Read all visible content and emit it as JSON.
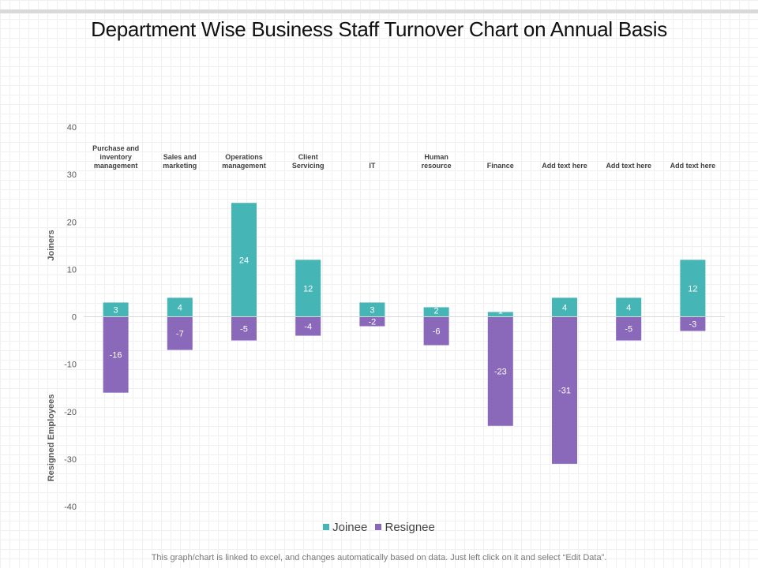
{
  "title": "Department Wise Business Staff Turnover Chart on Annual Basis",
  "footer": "This graph/chart is linked to excel, and changes automatically based on data. Just left click on it and select “Edit Data”.",
  "colors": {
    "joinee": "#45b5b6",
    "resignee": "#8a68ba",
    "axis_text": "#595959",
    "category_text": "#404040"
  },
  "chart_data": {
    "type": "bar",
    "title": "Department Wise Business Staff Turnover Chart on Annual Basis",
    "ylabel_top": "Joiners",
    "ylabel_bottom": "Resigned Employees",
    "ylim": [
      -40,
      40
    ],
    "yticks": [
      "40",
      "30",
      "20",
      "10",
      "0",
      "-10",
      "-20",
      "-30",
      "-40"
    ],
    "categories": [
      [
        "Purchase and",
        "inventory",
        "management"
      ],
      [
        "Sales and",
        "marketing"
      ],
      [
        "Operations",
        "management"
      ],
      [
        "Client",
        "Servicing"
      ],
      [
        "IT"
      ],
      [
        "Human",
        "resource"
      ],
      [
        "Finance"
      ],
      [
        "Add  text here"
      ],
      [
        "Add  text here"
      ],
      [
        "Add  text here"
      ]
    ],
    "series": [
      {
        "name": "Joinee",
        "values": [
          3,
          4,
          24,
          12,
          3,
          2,
          1,
          4,
          4,
          12
        ],
        "labels": [
          "3",
          "4",
          "24",
          "12",
          "3",
          "2",
          "1",
          "4",
          "4",
          "12"
        ]
      },
      {
        "name": "Resignee",
        "values": [
          -16,
          -7,
          -5,
          -4,
          -2,
          -6,
          -23,
          -31,
          -5,
          -3
        ],
        "labels": [
          "-16",
          "-7",
          "-5",
          "-4",
          "-2",
          "-6",
          "-23",
          "-31",
          "-5",
          "-3"
        ]
      }
    ],
    "legend": [
      "Joinee",
      "Resignee"
    ]
  }
}
